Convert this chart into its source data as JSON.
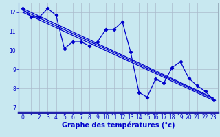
{
  "bg_color": "#c8e8f0",
  "plot_bg": "#c8e8f0",
  "line_color": "#0000cc",
  "grid_color": "#aabbcc",
  "xlabel": "Graphe des températures (°c)",
  "hours": [
    0,
    1,
    2,
    3,
    4,
    5,
    6,
    7,
    8,
    9,
    10,
    11,
    12,
    13,
    14,
    15,
    16,
    17,
    18,
    19,
    20,
    21,
    22,
    23
  ],
  "temp_curve": [
    12.2,
    11.75,
    11.75,
    12.2,
    11.85,
    10.1,
    10.45,
    10.45,
    10.25,
    10.45,
    11.1,
    11.1,
    11.5,
    9.9,
    7.8,
    7.55,
    8.5,
    8.3,
    9.1,
    9.4,
    8.55,
    8.15,
    7.85,
    7.4
  ],
  "reg_lines": [
    [
      12.2,
      7.5
    ],
    [
      12.1,
      7.45
    ],
    [
      12.0,
      7.38
    ]
  ],
  "ylim": [
    6.75,
    12.5
  ],
  "yticks": [
    7,
    8,
    9,
    10,
    11,
    12
  ],
  "xticks": [
    0,
    1,
    2,
    3,
    4,
    5,
    6,
    7,
    8,
    9,
    10,
    11,
    12,
    13,
    14,
    15,
    16,
    17,
    18,
    19,
    20,
    21,
    22,
    23
  ],
  "xbar_color": "#2222aa",
  "xlabel_fontsize": 7.0,
  "tick_fontsize": 5.5
}
